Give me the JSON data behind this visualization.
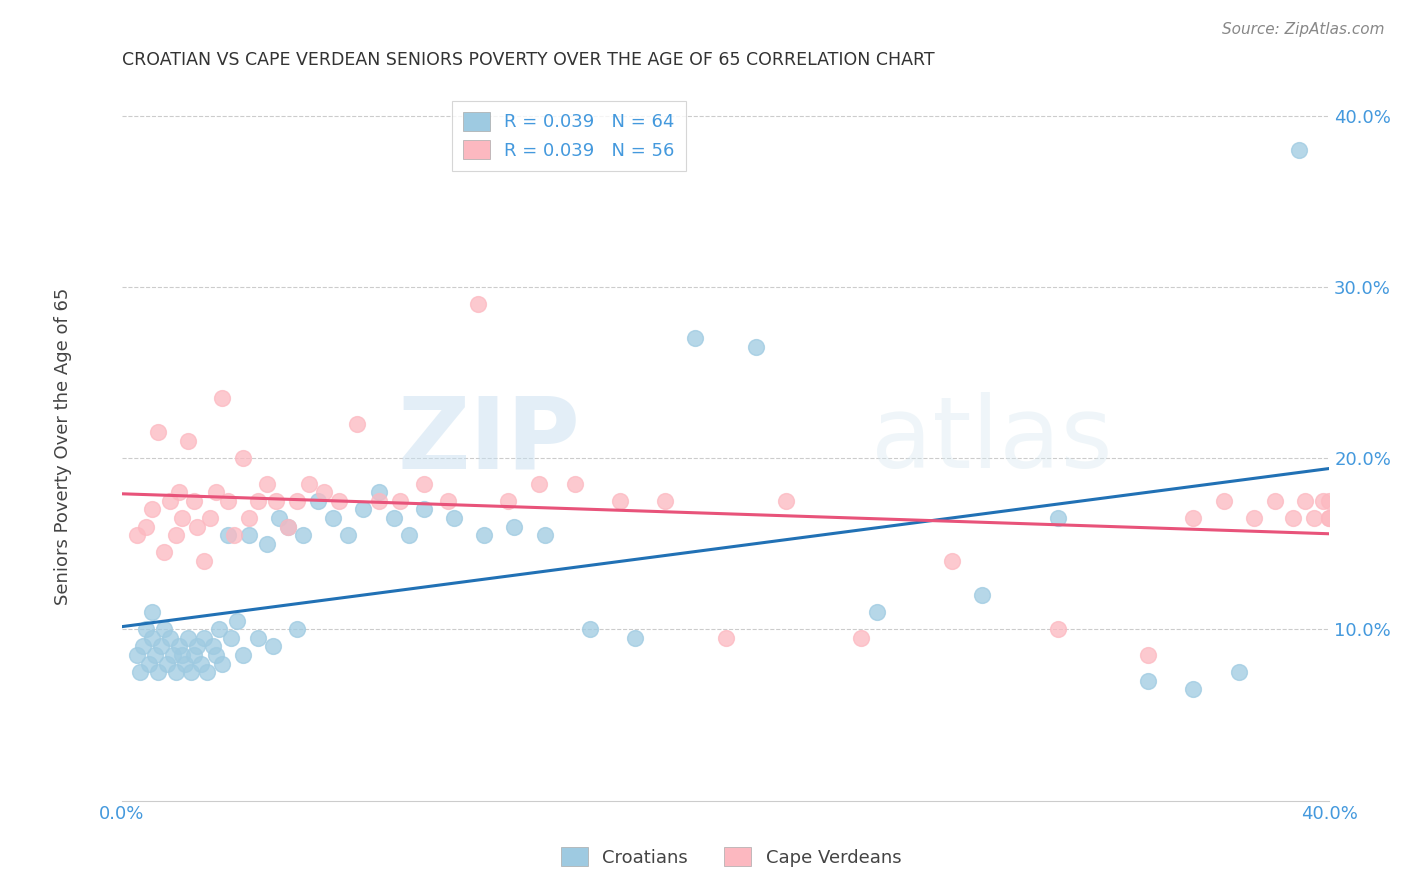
{
  "title": "CROATIAN VS CAPE VERDEAN SENIORS POVERTY OVER THE AGE OF 65 CORRELATION CHART",
  "source": "Source: ZipAtlas.com",
  "ylabel": "Seniors Poverty Over the Age of 65",
  "xlim": [
    0.0,
    0.4
  ],
  "ylim": [
    0.0,
    0.42
  ],
  "yticks": [
    0.1,
    0.2,
    0.3,
    0.4
  ],
  "ytick_labels": [
    "10.0%",
    "20.0%",
    "30.0%",
    "40.0%"
  ],
  "xticks": [
    0.0,
    0.4
  ],
  "xtick_labels": [
    "0.0%",
    "40.0%"
  ],
  "croatian_r": 0.039,
  "croatian_n": 64,
  "capeverdean_r": 0.039,
  "capeverdean_n": 56,
  "croatian_color": "#9ecae1",
  "capeverdean_color": "#fcb8c0",
  "trendline_croatian_color": "#2171b5",
  "trendline_capeverdean_color": "#e8537a",
  "background_color": "#ffffff",
  "watermark_zip": "ZIP",
  "watermark_atlas": "atlas",
  "croatian_x": [
    0.005,
    0.006,
    0.007,
    0.008,
    0.009,
    0.01,
    0.01,
    0.011,
    0.012,
    0.013,
    0.014,
    0.015,
    0.016,
    0.017,
    0.018,
    0.019,
    0.02,
    0.021,
    0.022,
    0.023,
    0.024,
    0.025,
    0.026,
    0.027,
    0.028,
    0.03,
    0.031,
    0.032,
    0.033,
    0.035,
    0.036,
    0.038,
    0.04,
    0.042,
    0.045,
    0.048,
    0.05,
    0.052,
    0.055,
    0.058,
    0.06,
    0.065,
    0.07,
    0.075,
    0.08,
    0.085,
    0.09,
    0.095,
    0.1,
    0.11,
    0.12,
    0.13,
    0.14,
    0.155,
    0.17,
    0.19,
    0.21,
    0.25,
    0.285,
    0.31,
    0.34,
    0.355,
    0.37,
    0.39
  ],
  "croatian_y": [
    0.085,
    0.075,
    0.09,
    0.1,
    0.08,
    0.095,
    0.11,
    0.085,
    0.075,
    0.09,
    0.1,
    0.08,
    0.095,
    0.085,
    0.075,
    0.09,
    0.085,
    0.08,
    0.095,
    0.075,
    0.085,
    0.09,
    0.08,
    0.095,
    0.075,
    0.09,
    0.085,
    0.1,
    0.08,
    0.155,
    0.095,
    0.105,
    0.085,
    0.155,
    0.095,
    0.15,
    0.09,
    0.165,
    0.16,
    0.1,
    0.155,
    0.175,
    0.165,
    0.155,
    0.17,
    0.18,
    0.165,
    0.155,
    0.17,
    0.165,
    0.155,
    0.16,
    0.155,
    0.1,
    0.095,
    0.27,
    0.265,
    0.11,
    0.12,
    0.165,
    0.07,
    0.065,
    0.075,
    0.38
  ],
  "capeverdean_x": [
    0.005,
    0.008,
    0.01,
    0.012,
    0.014,
    0.016,
    0.018,
    0.019,
    0.02,
    0.022,
    0.024,
    0.025,
    0.027,
    0.029,
    0.031,
    0.033,
    0.035,
    0.037,
    0.04,
    0.042,
    0.045,
    0.048,
    0.051,
    0.055,
    0.058,
    0.062,
    0.067,
    0.072,
    0.078,
    0.085,
    0.092,
    0.1,
    0.108,
    0.118,
    0.128,
    0.138,
    0.15,
    0.165,
    0.18,
    0.2,
    0.22,
    0.245,
    0.275,
    0.31,
    0.34,
    0.355,
    0.365,
    0.375,
    0.382,
    0.388,
    0.392,
    0.395,
    0.398,
    0.4,
    0.4,
    0.4
  ],
  "capeverdean_y": [
    0.155,
    0.16,
    0.17,
    0.215,
    0.145,
    0.175,
    0.155,
    0.18,
    0.165,
    0.21,
    0.175,
    0.16,
    0.14,
    0.165,
    0.18,
    0.235,
    0.175,
    0.155,
    0.2,
    0.165,
    0.175,
    0.185,
    0.175,
    0.16,
    0.175,
    0.185,
    0.18,
    0.175,
    0.22,
    0.175,
    0.175,
    0.185,
    0.175,
    0.29,
    0.175,
    0.185,
    0.185,
    0.175,
    0.175,
    0.095,
    0.175,
    0.095,
    0.14,
    0.1,
    0.085,
    0.165,
    0.175,
    0.165,
    0.175,
    0.165,
    0.175,
    0.165,
    0.175,
    0.165,
    0.175,
    0.165
  ]
}
